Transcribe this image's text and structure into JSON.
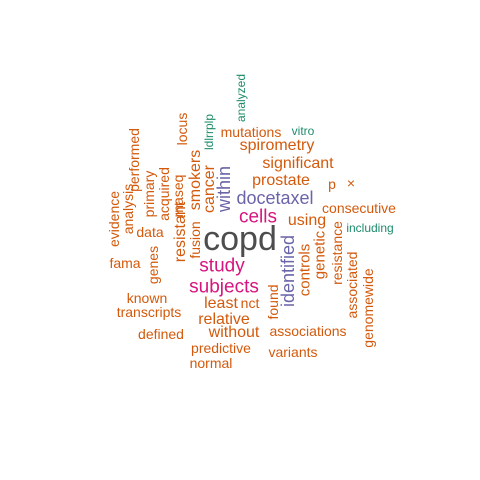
{
  "colors": {
    "dark": "#4d4d4d",
    "magenta": "#d6157f",
    "purple": "#6a64a8",
    "orange": "#d35a0c",
    "green": "#1e8c6a"
  },
  "words": [
    {
      "text": "copd",
      "color": "dark"
    },
    {
      "text": "subjects",
      "color": "magenta"
    },
    {
      "text": "study",
      "color": "magenta"
    },
    {
      "text": "cells",
      "color": "magenta"
    },
    {
      "text": "docetaxel",
      "color": "purple"
    },
    {
      "text": "identified",
      "color": "purple"
    },
    {
      "text": "within",
      "color": "purple"
    },
    {
      "text": "spirometry",
      "color": "orange"
    },
    {
      "text": "significant",
      "color": "orange"
    },
    {
      "text": "prostate",
      "color": "orange"
    },
    {
      "text": "using",
      "color": "orange"
    },
    {
      "text": "mutations",
      "color": "orange"
    },
    {
      "text": "vitro",
      "color": "green"
    },
    {
      "text": "p",
      "color": "orange"
    },
    {
      "text": "×",
      "color": "orange"
    },
    {
      "text": "consecutive",
      "color": "orange"
    },
    {
      "text": "including",
      "color": "green"
    },
    {
      "text": "controls",
      "color": "orange"
    },
    {
      "text": "genetic",
      "color": "orange"
    },
    {
      "text": "resistance",
      "color": "orange"
    },
    {
      "text": "associated",
      "color": "orange"
    },
    {
      "text": "genomewide",
      "color": "orange"
    },
    {
      "text": "associations",
      "color": "orange"
    },
    {
      "text": "variants",
      "color": "orange"
    },
    {
      "text": "found",
      "color": "orange"
    },
    {
      "text": "least",
      "color": "orange"
    },
    {
      "text": "nct",
      "color": "orange"
    },
    {
      "text": "relative",
      "color": "orange"
    },
    {
      "text": "without",
      "color": "orange"
    },
    {
      "text": "predictive",
      "color": "orange"
    },
    {
      "text": "normal",
      "color": "orange"
    },
    {
      "text": "defined",
      "color": "orange"
    },
    {
      "text": "transcripts",
      "color": "orange"
    },
    {
      "text": "known",
      "color": "orange"
    },
    {
      "text": "fama",
      "color": "orange"
    },
    {
      "text": "genes",
      "color": "orange"
    },
    {
      "text": "data",
      "color": "orange"
    },
    {
      "text": "evidence",
      "color": "orange"
    },
    {
      "text": "analysis",
      "color": "orange"
    },
    {
      "text": "performed",
      "color": "orange"
    },
    {
      "text": "primary",
      "color": "orange"
    },
    {
      "text": "acquired",
      "color": "orange"
    },
    {
      "text": "rnaseq",
      "color": "orange"
    },
    {
      "text": "resistant",
      "color": "orange"
    },
    {
      "text": "fusion",
      "color": "orange"
    },
    {
      "text": "locus",
      "color": "orange"
    },
    {
      "text": "smokers",
      "color": "orange"
    },
    {
      "text": "cancer",
      "color": "orange"
    },
    {
      "text": "ldlrrplp",
      "color": "green"
    },
    {
      "text": "analyzed",
      "color": "green"
    }
  ]
}
